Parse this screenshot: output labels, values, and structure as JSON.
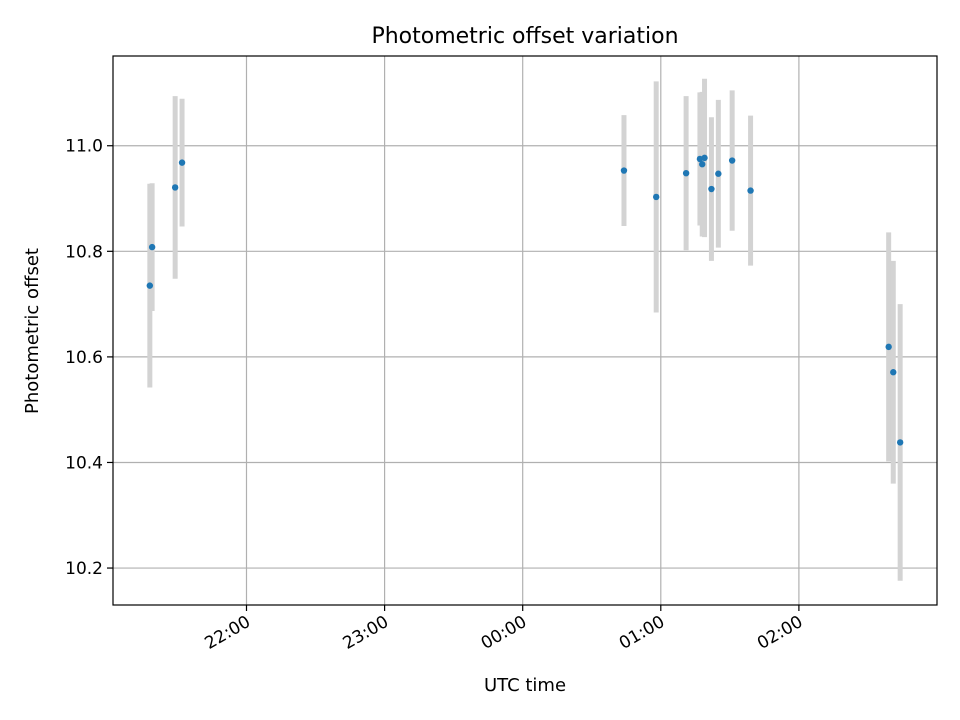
{
  "chart_data": {
    "type": "scatter",
    "title": "Photometric offset variation",
    "xlabel": "UTC time",
    "ylabel": "Photometric offset",
    "x_unit": "UTC time (HH:MM)",
    "xlim": [
      "21:02",
      "03:00"
    ],
    "ylim": [
      10.13,
      11.17
    ],
    "x_ticks": [
      "22:00",
      "23:00",
      "00:00",
      "01:00",
      "02:00"
    ],
    "y_ticks": [
      "10.2",
      "10.4",
      "10.6",
      "10.8",
      "11.0"
    ],
    "grid": true,
    "colors": {
      "point": "#1f77b4",
      "errorbar": "#d3d3d3",
      "grid": "#b0b0b0"
    },
    "points": [
      {
        "x": "21:18",
        "y": 10.735,
        "yerr": 0.193
      },
      {
        "x": "21:19",
        "y": 10.808,
        "yerr": 0.121
      },
      {
        "x": "21:29",
        "y": 10.921,
        "yerr": 0.173
      },
      {
        "x": "21:32",
        "y": 10.968,
        "yerr": 0.121
      },
      {
        "x": "00:44",
        "y": 10.953,
        "yerr": 0.105
      },
      {
        "x": "00:58",
        "y": 10.903,
        "yerr": 0.219
      },
      {
        "x": "01:11",
        "y": 10.948,
        "yerr": 0.146
      },
      {
        "x": "01:17",
        "y": 10.975,
        "yerr": 0.126
      },
      {
        "x": "01:18",
        "y": 10.965,
        "yerr": 0.137
      },
      {
        "x": "01:19",
        "y": 10.977,
        "yerr": 0.15
      },
      {
        "x": "01:22",
        "y": 10.918,
        "yerr": 0.136
      },
      {
        "x": "01:25",
        "y": 10.947,
        "yerr": 0.14
      },
      {
        "x": "01:31",
        "y": 10.972,
        "yerr": 0.133
      },
      {
        "x": "01:39",
        "y": 10.915,
        "yerr": 0.142
      },
      {
        "x": "02:39",
        "y": 10.619,
        "yerr": 0.217
      },
      {
        "x": "02:41",
        "y": 10.571,
        "yerr": 0.211
      },
      {
        "x": "02:44",
        "y": 10.438,
        "yerr": 0.262
      }
    ]
  }
}
